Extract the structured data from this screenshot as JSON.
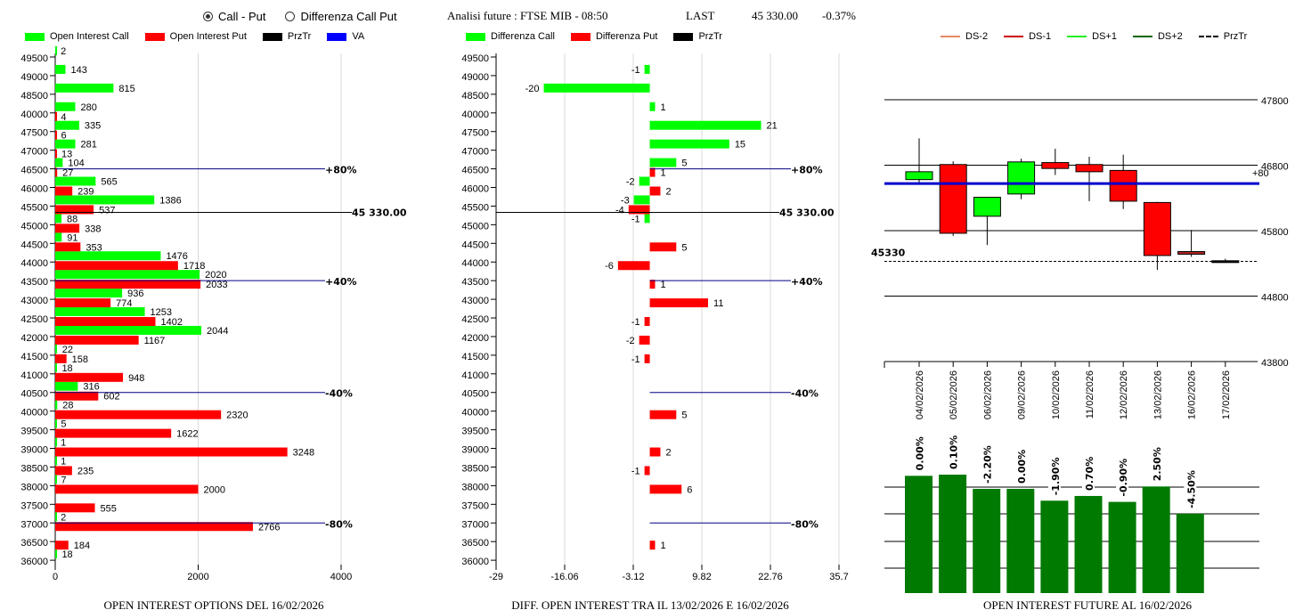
{
  "controls": {
    "radio_options": [
      {
        "label": "Call - Put",
        "selected": true
      },
      {
        "label": "Differenza Call Put",
        "selected": false
      }
    ]
  },
  "header": {
    "title": "Analisi future : FTSE MIB - 08:50",
    "last_label": "LAST",
    "last_value": "45 330.00",
    "change": "-0.37%"
  },
  "legends": {
    "left": [
      {
        "label": "Open Interest Call",
        "color": "#00ff00"
      },
      {
        "label": "Open Interest Put",
        "color": "#ff0000"
      },
      {
        "label": "PrzTr",
        "color": "#000000"
      },
      {
        "label": "VA",
        "color": "#0000ff"
      }
    ],
    "middle": [
      {
        "label": "Differenza Call",
        "color": "#00ff00"
      },
      {
        "label": "Differenza Put",
        "color": "#ff0000"
      },
      {
        "label": "PrzTr",
        "color": "#000000"
      }
    ],
    "right": [
      {
        "label": "DS-2",
        "color": "#e8896a",
        "style": "solid"
      },
      {
        "label": "DS-1",
        "color": "#cc0000",
        "style": "solid"
      },
      {
        "label": "DS+1",
        "color": "#22ee22",
        "style": "solid"
      },
      {
        "label": "DS+2",
        "color": "#006600",
        "style": "solid"
      },
      {
        "label": "PrzTr",
        "color": "#000000",
        "style": "dashed"
      }
    ]
  },
  "chart_data": [
    {
      "type": "bar",
      "orientation": "horizontal",
      "title": "OPEN INTEREST OPTIONS DEL 16/02/2026",
      "categories": [
        "49500",
        "49000",
        "48500",
        "40000",
        "47500",
        "47000",
        "46500",
        "46000",
        "45500",
        "45000",
        "44500",
        "44000",
        "43500",
        "43000",
        "42500",
        "42000",
        "41500",
        "41000",
        "40500",
        "40000",
        "39500",
        "39000",
        "38500",
        "38000",
        "37500",
        "37000",
        "36500",
        "36000"
      ],
      "series": [
        {
          "name": "Open Interest Call",
          "color": "#00ff00",
          "values": [
            2,
            143,
            815,
            280,
            335,
            281,
            104,
            565,
            1386,
            88,
            91,
            1476,
            2020,
            936,
            1253,
            2044,
            22,
            18,
            316,
            28,
            5,
            1,
            1,
            7,
            null,
            2,
            null,
            18
          ]
        },
        {
          "name": "Open Interest Put",
          "color": "#ff0000",
          "values": [
            null,
            null,
            null,
            4,
            6,
            13,
            27,
            239,
            537,
            338,
            353,
            1718,
            2033,
            774,
            1402,
            1167,
            158,
            948,
            602,
            2320,
            1622,
            3248,
            235,
            2000,
            555,
            2766,
            184,
            null
          ]
        }
      ],
      "xlim": [
        0,
        4000
      ],
      "xticks": [
        "0",
        "2000",
        "4000"
      ],
      "reference_lines": [
        {
          "label": "+80%",
          "at_strike": "46500"
        },
        {
          "label": "45 330.00",
          "at_price": 45330
        },
        {
          "label": "+40%",
          "at_strike": "43500"
        },
        {
          "label": "-40%",
          "at_strike": "40500"
        },
        {
          "label": "-80%",
          "at_strike": "37000"
        }
      ]
    },
    {
      "type": "bar",
      "orientation": "horizontal",
      "title": "DIFF. OPEN INTEREST TRA IL 13/02/2026 E 16/02/2026",
      "categories": [
        "49500",
        "49000",
        "48500",
        "40000",
        "47500",
        "47000",
        "46500",
        "46000",
        "45500",
        "45000",
        "44500",
        "44000",
        "43500",
        "43000",
        "42500",
        "42000",
        "41500",
        "41000",
        "40500",
        "40000",
        "39500",
        "39000",
        "38500",
        "38000",
        "37500",
        "37000",
        "36500",
        "36000"
      ],
      "series": [
        {
          "name": "Differenza Call",
          "color": "#00ff00",
          "values": [
            null,
            -1,
            -20,
            1,
            21,
            15,
            5,
            -2,
            -3,
            -1,
            null,
            null,
            null,
            null,
            null,
            null,
            null,
            null,
            null,
            null,
            null,
            null,
            null,
            null,
            null,
            null,
            null,
            null
          ]
        },
        {
          "name": "Differenza Put",
          "color": "#ff0000",
          "values": [
            null,
            null,
            null,
            null,
            null,
            null,
            1,
            2,
            -4,
            null,
            5,
            -6,
            1,
            11,
            -1,
            -2,
            -1,
            null,
            null,
            5,
            null,
            2,
            -1,
            6,
            null,
            null,
            1,
            null
          ]
        }
      ],
      "xlim": [
        -29,
        35.7
      ],
      "xticks": [
        "-29",
        "-16.06",
        "-3.12",
        "9.82",
        "22.76",
        "35.7"
      ],
      "reference_lines": [
        {
          "label": "+80%",
          "at_strike": "46500"
        },
        {
          "label": "45 330.00",
          "at_price": 45330
        },
        {
          "label": "+40%",
          "at_strike": "43500"
        },
        {
          "label": "-40%",
          "at_strike": "40500"
        },
        {
          "label": "-80%",
          "at_strike": "37000"
        }
      ]
    },
    {
      "type": "candlestick",
      "dates": [
        "04/02/2026",
        "05/02/2026",
        "06/02/2026",
        "09/02/2026",
        "10/02/2026",
        "11/02/2026",
        "12/02/2026",
        "13/02/2026",
        "16/02/2026",
        "17/02/2026"
      ],
      "ohlc": [
        {
          "open": 46580,
          "high": 47210,
          "low": 46500,
          "close": 46700
        },
        {
          "open": 46810,
          "high": 46860,
          "low": 45720,
          "close": 45760
        },
        {
          "open": 46020,
          "high": 46020,
          "low": 45580,
          "close": 46310
        },
        {
          "open": 46850,
          "high": 46900,
          "low": 46280,
          "close": 46360
        },
        {
          "open": 46840,
          "high": 47050,
          "low": 46650,
          "close": 46750
        },
        {
          "open": 46810,
          "high": 46930,
          "low": 46250,
          "close": 46700
        },
        {
          "open": 46720,
          "high": 46960,
          "low": 46130,
          "close": 46250
        },
        {
          "open": 46230,
          "high": 46240,
          "low": 45200,
          "close": 45420
        },
        {
          "open": 45480,
          "high": 45810,
          "low": 45400,
          "close": 45440
        },
        {
          "open": 45340,
          "high": 45370,
          "low": 45310,
          "close": 45330
        }
      ],
      "candle_colors": [
        "#00ff00",
        "#ff0000",
        "#00ff00",
        "#00ff00",
        "#ff0000",
        "#ff0000",
        "#ff0000",
        "#ff0000",
        "#b22222",
        "#000000"
      ],
      "ylim": [
        43800,
        47800
      ],
      "yticks": [
        "47800",
        "46800",
        "45800",
        "44800",
        "43800"
      ],
      "va_line": {
        "value": 46520,
        "color": "#0000cc",
        "label": "+80"
      },
      "przr_line": {
        "value": 45330,
        "label": "45330"
      }
    },
    {
      "type": "bar",
      "title": "OPEN INTEREST FUTURE AL 16/02/2026",
      "categories": [
        "04/02/2026",
        "05/02/2026",
        "06/02/2026",
        "09/02/2026",
        "10/02/2026",
        "11/02/2026",
        "12/02/2026",
        "13/02/2026",
        "16/02/2026"
      ],
      "relative_heights": [
        0.99,
        1.0,
        0.88,
        0.88,
        0.78,
        0.82,
        0.77,
        0.9,
        0.67
      ],
      "labels": [
        "0.00%",
        "0.10%",
        "-2.20%",
        "0.00%",
        "-1.90%",
        "0.70%",
        "-0.90%",
        "2.50%",
        "-4.50%"
      ],
      "color": "#007a00"
    }
  ],
  "footers": {
    "left": "OPEN INTEREST OPTIONS DEL 16/02/2026",
    "middle": "DIFF. OPEN INTEREST TRA IL 13/02/2026 E 16/02/2026",
    "right": "OPEN INTEREST FUTURE AL 16/02/2026"
  }
}
